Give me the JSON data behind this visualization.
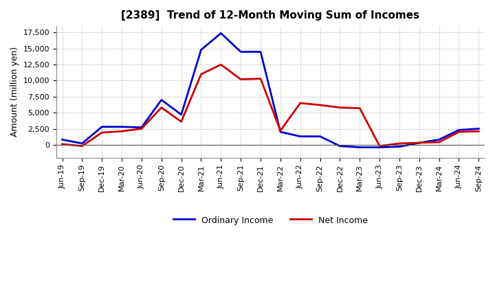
{
  "title": "[2389]  Trend of 12-Month Moving Sum of Incomes",
  "ylabel": "Amount (million yen)",
  "x_labels": [
    "Jun-19",
    "Sep-19",
    "Dec-19",
    "Mar-20",
    "Jun-20",
    "Sep-20",
    "Dec-20",
    "Mar-21",
    "Jun-21",
    "Sep-21",
    "Dec-21",
    "Mar-22",
    "Jun-22",
    "Sep-22",
    "Dec-22",
    "Mar-23",
    "Jun-23",
    "Sep-23",
    "Dec-23",
    "Mar-24",
    "Jun-24",
    "Sep-24"
  ],
  "ordinary_income": [
    800,
    200,
    2800,
    2800,
    2700,
    7000,
    4700,
    14800,
    17400,
    14500,
    14500,
    2000,
    1300,
    1300,
    -200,
    -400,
    -400,
    -300,
    300,
    800,
    2300,
    2500
  ],
  "net_income": [
    100,
    -200,
    1900,
    2100,
    2500,
    5800,
    3600,
    11000,
    12500,
    10200,
    10300,
    2200,
    6500,
    6200,
    5800,
    5700,
    -200,
    200,
    300,
    400,
    2000,
    2100
  ],
  "ordinary_color": "#0000cc",
  "net_color": "#cc0000",
  "ylim_min": -2000,
  "ylim_max": 18500,
  "yticks": [
    0,
    2500,
    5000,
    7500,
    10000,
    12500,
    15000,
    17500
  ],
  "line_width": 2.0,
  "background_color": "#ffffff",
  "grid_color": "#aaaaaa",
  "legend_ordinary": "Ordinary Income",
  "legend_net": "Net Income"
}
